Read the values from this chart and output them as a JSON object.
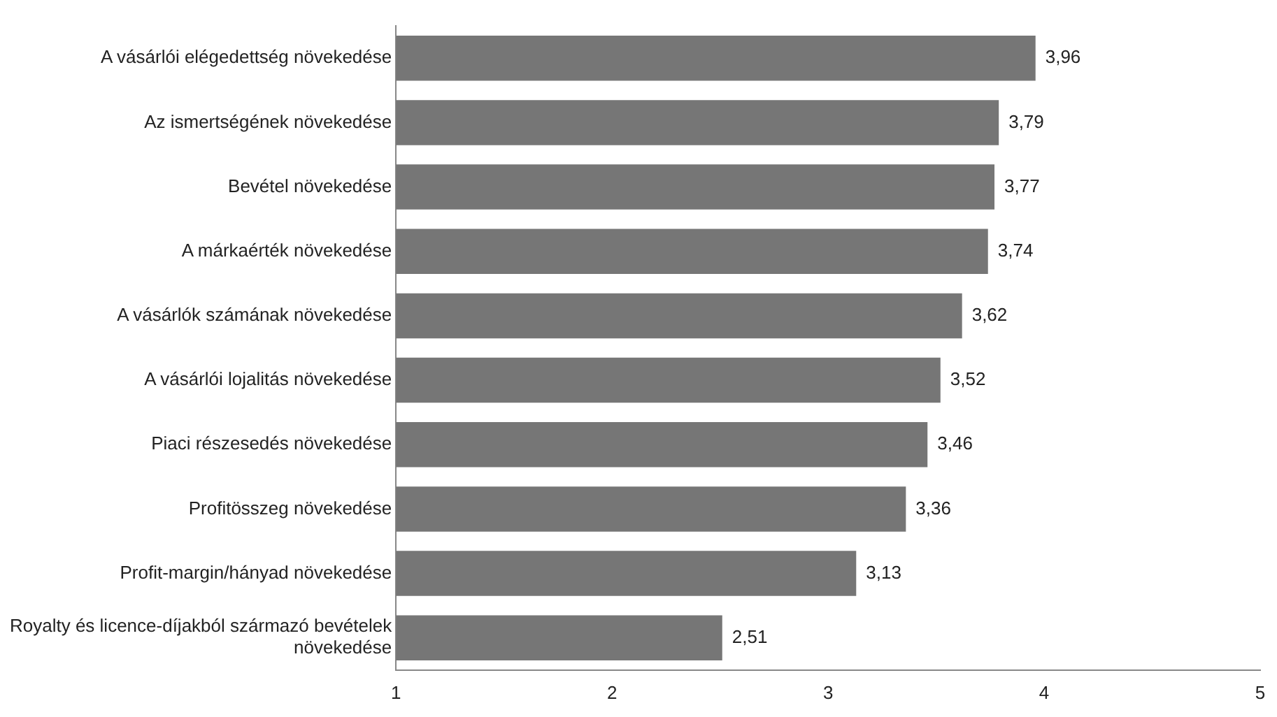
{
  "chart_data": {
    "type": "bar",
    "orientation": "horizontal",
    "categories": [
      "A vásárlói elégedettség növekedése",
      "Az ismertségének növekedése",
      "Bevétel növekedése",
      "A márkaérték növekedése",
      "A vásárlók számának növekedése",
      "A vásárlói lojalitás növekedése",
      "Piaci részesedés növekedése",
      "Profitösszeg növekedése",
      "Profit-margin/hányad növekedése",
      "Royalty és licence-díjakból származó bevételek növekedése"
    ],
    "values": [
      3.96,
      3.79,
      3.77,
      3.74,
      3.62,
      3.52,
      3.46,
      3.36,
      3.13,
      2.51
    ],
    "value_labels": [
      "3,96",
      "3,79",
      "3,77",
      "3,74",
      "3,62",
      "3,52",
      "3,46",
      "3,36",
      "3,13",
      "2,51"
    ],
    "color": "#767676",
    "xlim": [
      1,
      5
    ],
    "xticks": [
      1,
      2,
      3,
      4,
      5
    ]
  }
}
